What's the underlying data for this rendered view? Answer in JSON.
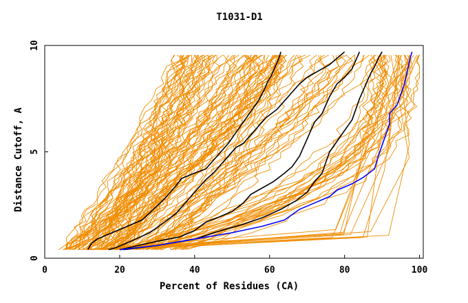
{
  "chart_data": {
    "type": "line",
    "title": "T1031-D1",
    "xlabel": "Percent of Residues (CA)",
    "ylabel": "Distance Cutoff, A",
    "xlim": [
      0,
      101
    ],
    "ylim": [
      0,
      10
    ],
    "x_ticks": [
      0,
      20,
      40,
      60,
      80,
      100
    ],
    "y_ticks": [
      0,
      5,
      10
    ],
    "grid": false,
    "colors": {
      "other_models": "#f08c00",
      "highlight_black": "#000000",
      "highlight_blue": "#0000ff"
    },
    "series": [
      {
        "role": "highlight_black",
        "points": [
          [
            11.5,
            0.4
          ],
          [
            12.5,
            0.7
          ],
          [
            14,
            0.9
          ],
          [
            18,
            1.2
          ],
          [
            22,
            1.5
          ],
          [
            26,
            1.8
          ],
          [
            29,
            2.3
          ],
          [
            32,
            2.8
          ],
          [
            35,
            3.4
          ],
          [
            36.5,
            3.75
          ],
          [
            40,
            4.0
          ],
          [
            43,
            4.2
          ],
          [
            45,
            4.6
          ],
          [
            47,
            5.0
          ],
          [
            49,
            5.4
          ],
          [
            51,
            5.9
          ],
          [
            53,
            6.4
          ],
          [
            55,
            6.9
          ],
          [
            57,
            7.4
          ],
          [
            58.5,
            7.9
          ],
          [
            59.5,
            8.3
          ],
          [
            60.5,
            8.6
          ],
          [
            61.5,
            9.0
          ],
          [
            62.5,
            9.4
          ],
          [
            63,
            9.7
          ]
        ]
      },
      {
        "role": "highlight_black",
        "points": [
          [
            17,
            0.4
          ],
          [
            19,
            0.5
          ],
          [
            23,
            0.8
          ],
          [
            28,
            1.2
          ],
          [
            32,
            1.7
          ],
          [
            35,
            2.1
          ],
          [
            37,
            2.5
          ],
          [
            39,
            2.9
          ],
          [
            41,
            3.3
          ],
          [
            43,
            3.7
          ],
          [
            45,
            4.0
          ],
          [
            47,
            4.4
          ],
          [
            49,
            4.8
          ],
          [
            51,
            5.2
          ],
          [
            53,
            5.4
          ],
          [
            55,
            5.8
          ],
          [
            57,
            6.2
          ],
          [
            59,
            6.6
          ],
          [
            62,
            7.0
          ],
          [
            64,
            7.4
          ],
          [
            66,
            7.8
          ],
          [
            68,
            8.2
          ],
          [
            70,
            8.5
          ],
          [
            73,
            8.8
          ],
          [
            76,
            9.1
          ],
          [
            78,
            9.4
          ],
          [
            80,
            9.7
          ]
        ]
      },
      {
        "role": "highlight_black",
        "points": [
          [
            20,
            0.4
          ],
          [
            25,
            0.6
          ],
          [
            30,
            0.8
          ],
          [
            36,
            1.0
          ],
          [
            40,
            1.3
          ],
          [
            43,
            1.7
          ],
          [
            46,
            1.9
          ],
          [
            50,
            2.2
          ],
          [
            53,
            2.6
          ],
          [
            55,
            3.0
          ],
          [
            58,
            3.3
          ],
          [
            61,
            3.6
          ],
          [
            64,
            4.0
          ],
          [
            66,
            4.3
          ],
          [
            68,
            4.8
          ],
          [
            69,
            5.2
          ],
          [
            70,
            5.6
          ],
          [
            71,
            6.0
          ],
          [
            72,
            6.4
          ],
          [
            74,
            6.8
          ],
          [
            75,
            7.2
          ],
          [
            76,
            7.6
          ],
          [
            77,
            7.9
          ],
          [
            78,
            8.2
          ],
          [
            80,
            8.5
          ],
          [
            82,
            8.9
          ],
          [
            83,
            9.3
          ],
          [
            84,
            9.7
          ]
        ]
      },
      {
        "role": "highlight_black",
        "points": [
          [
            21,
            0.4
          ],
          [
            30,
            0.6
          ],
          [
            40,
            0.9
          ],
          [
            47,
            1.3
          ],
          [
            53,
            1.6
          ],
          [
            58,
            1.9
          ],
          [
            63,
            2.3
          ],
          [
            67,
            2.7
          ],
          [
            70,
            3.1
          ],
          [
            72,
            3.6
          ],
          [
            74,
            4.0
          ],
          [
            75,
            4.5
          ],
          [
            76,
            5.0
          ],
          [
            78,
            5.5
          ],
          [
            80,
            6.0
          ],
          [
            82,
            6.5
          ],
          [
            83,
            7.0
          ],
          [
            84,
            7.5
          ],
          [
            85,
            7.9
          ],
          [
            86,
            8.3
          ],
          [
            87,
            8.7
          ],
          [
            88,
            9.0
          ],
          [
            89,
            9.4
          ],
          [
            90,
            9.7
          ]
        ]
      },
      {
        "role": "highlight_blue",
        "points": [
          [
            20,
            0.4
          ],
          [
            30,
            0.6
          ],
          [
            40,
            0.9
          ],
          [
            50,
            1.2
          ],
          [
            58,
            1.5
          ],
          [
            64,
            1.8
          ],
          [
            68,
            2.3
          ],
          [
            72,
            2.6
          ],
          [
            76,
            2.9
          ],
          [
            78,
            3.2
          ],
          [
            82,
            3.5
          ],
          [
            85,
            3.8
          ],
          [
            88,
            4.2
          ],
          [
            89,
            4.8
          ],
          [
            90,
            5.3
          ],
          [
            91,
            5.8
          ],
          [
            92,
            6.3
          ],
          [
            92,
            6.8
          ],
          [
            94,
            7.2
          ],
          [
            95,
            7.7
          ],
          [
            96,
            8.2
          ],
          [
            96.5,
            8.6
          ],
          [
            97,
            9.0
          ],
          [
            97.5,
            9.4
          ],
          [
            98,
            9.7
          ]
        ]
      }
    ]
  }
}
